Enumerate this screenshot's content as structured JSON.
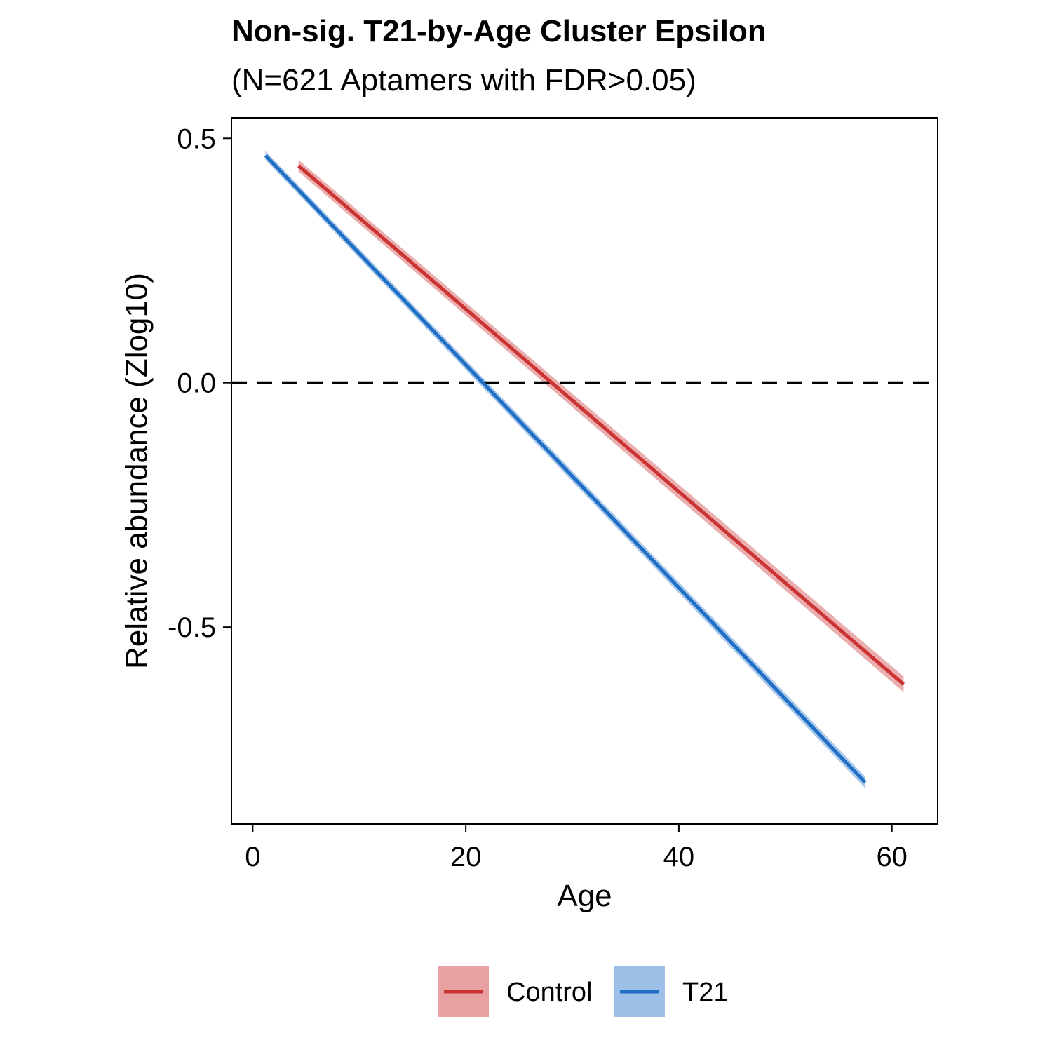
{
  "chart_data": {
    "type": "line",
    "title": "Non-sig. T21-by-Age Cluster Epsilon",
    "subtitle": "(N=621 Aptamers with FDR>0.05)",
    "xlabel": "Age",
    "ylabel": "Relative abundance (Zlog10)",
    "xlim": [
      -2,
      64.3
    ],
    "ylim": [
      -0.903,
      0.542
    ],
    "xticks": [
      0,
      20,
      40,
      60
    ],
    "xtick_labels": [
      "0",
      "20",
      "40",
      "60"
    ],
    "yticks": [
      0.5,
      0.0,
      -0.5
    ],
    "ytick_labels": [
      "0.5",
      "0.0",
      "-0.5"
    ],
    "reference_line": {
      "y": 0.0,
      "style": "dashed",
      "color": "#000000"
    },
    "grid": false,
    "legend": {
      "position": "bottom"
    },
    "series": [
      {
        "name": "Control",
        "color": "#CC3333",
        "band_color": "#E8A0A0",
        "x": [
          4.3,
          61.1
        ],
        "y": [
          0.444,
          -0.617
        ],
        "band_half_width_start": 0.012,
        "band_half_width_end": 0.016
      },
      {
        "name": "T21",
        "color": "#1F6FC5",
        "band_color": "#9CC0E8",
        "x": [
          1.2,
          57.5
        ],
        "y": [
          0.465,
          -0.818
        ],
        "band_half_width_start": 0.009,
        "band_half_width_end": 0.012
      }
    ]
  }
}
